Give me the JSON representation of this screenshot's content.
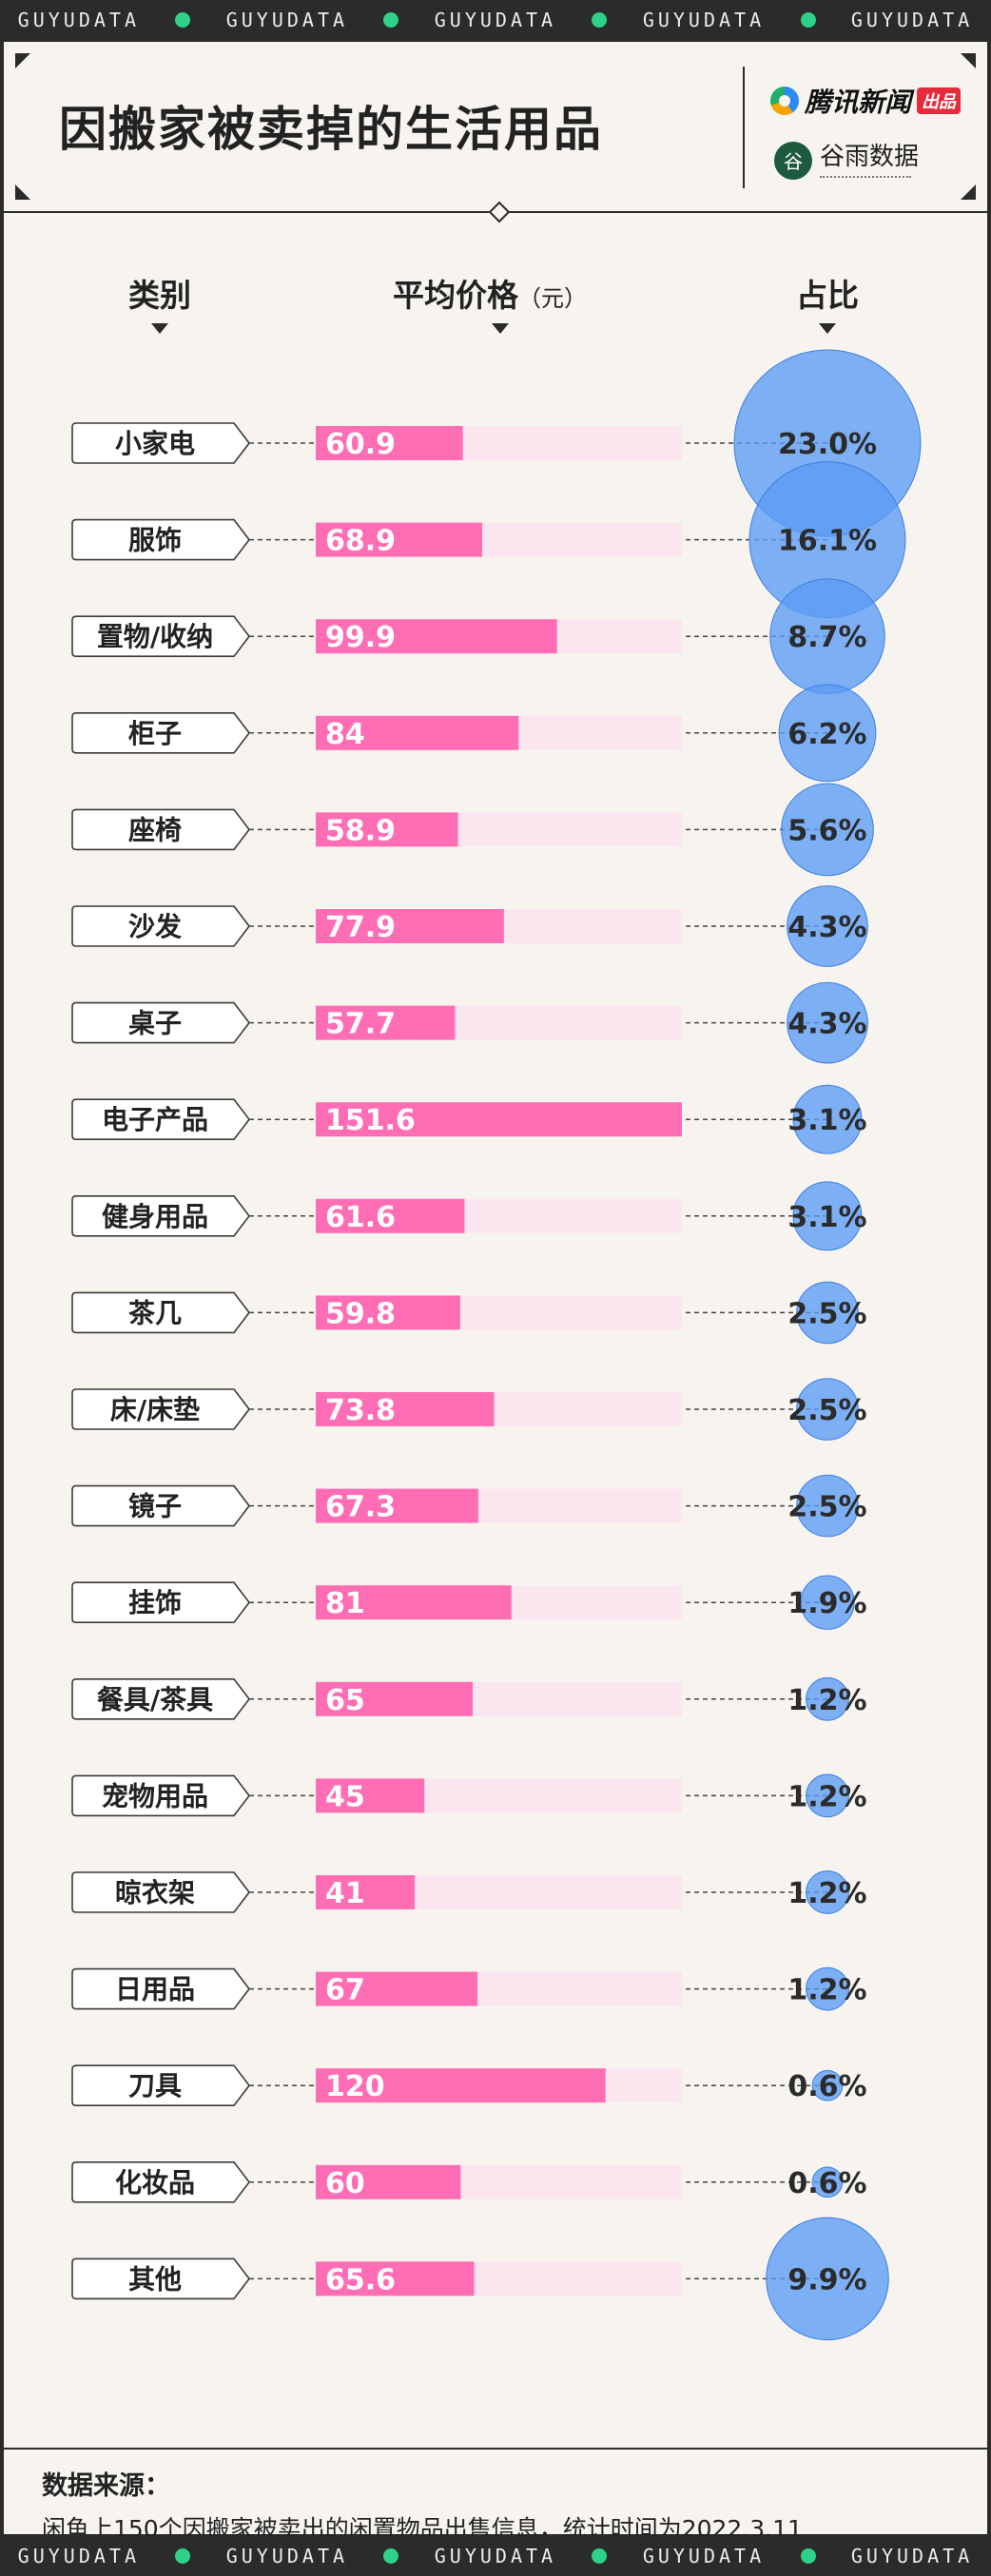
{
  "ribbon": {
    "text": "GUYUDATA"
  },
  "header": {
    "title": "因搬家被卖掉的生活用品",
    "brand1_name": "腾讯新闻",
    "brand1_tag": "出品",
    "brand2_name": "谷雨数据",
    "brand2_logo_char": "谷"
  },
  "columns": {
    "category": "类别",
    "price": "平均价格",
    "price_unit": "（元）",
    "share": "占比"
  },
  "chart_data": {
    "type": "bar",
    "categories": [
      "小家电",
      "服饰",
      "置物/收纳",
      "柜子",
      "座椅",
      "沙发",
      "桌子",
      "电子产品",
      "健身用品",
      "茶几",
      "床/床垫",
      "镜子",
      "挂饰",
      "餐具/茶具",
      "宠物用品",
      "晾衣架",
      "日用品",
      "刀具",
      "化妆品",
      "其他"
    ],
    "series": [
      {
        "values": [
          60.9,
          68.9,
          99.9,
          84,
          58.9,
          77.9,
          57.7,
          151.6,
          61.6,
          59.8,
          73.8,
          67.3,
          81,
          65,
          45,
          41,
          67,
          120,
          60,
          65.6
        ]
      },
      {
        "values": [
          23.0,
          16.1,
          8.7,
          6.2,
          5.6,
          4.3,
          4.3,
          3.1,
          3.1,
          2.5,
          2.5,
          2.5,
          1.9,
          1.2,
          1.2,
          1.2,
          1.2,
          0.6,
          0.6,
          9.9
        ]
      }
    ],
    "price_labels": [
      "60.9",
      "68.9",
      "99.9",
      "84",
      "58.9",
      "77.9",
      "57.7",
      "151.6",
      "61.6",
      "59.8",
      "73.8",
      "67.3",
      "81",
      "65",
      "45",
      "41",
      "67",
      "120",
      "60",
      "65.6"
    ],
    "share_labels": [
      "23.0%",
      "16.1%",
      "8.7%",
      "6.2%",
      "5.6%",
      "4.3%",
      "4.3%",
      "3.1%",
      "3.1%",
      "2.5%",
      "2.5%",
      "2.5%",
      "1.9%",
      "1.2%",
      "1.2%",
      "1.2%",
      "1.2%",
      "0.6%",
      "0.6%",
      "9.9%"
    ],
    "price_max": 151.6,
    "colors": {
      "bar": "#ff6eb4",
      "bar_track": "#fbe6ef",
      "bubble": "#5b9bf5",
      "bubble_stroke": "#3f7fe0"
    }
  },
  "source": {
    "title": "数据来源：",
    "text": "闲鱼上150个因搬家被卖出的闲置物品出售信息，统计时间为2022.3.11"
  }
}
